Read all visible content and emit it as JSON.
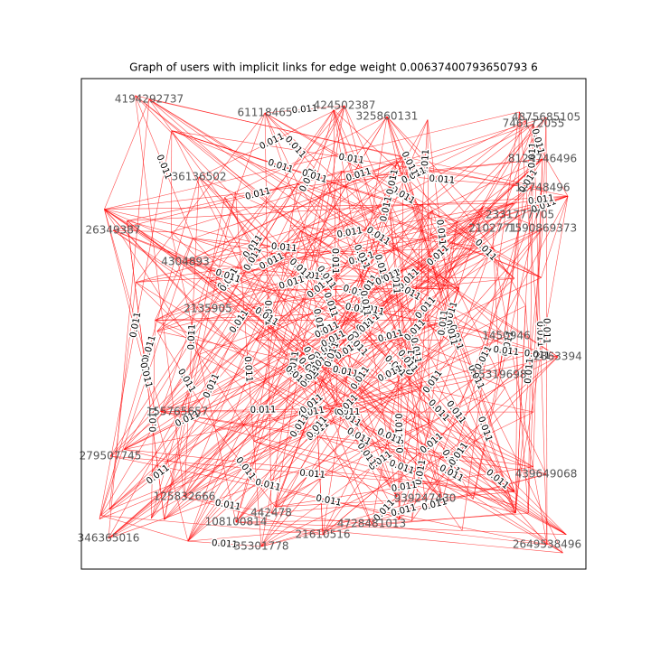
{
  "title": "Graph of users with implicit links for edge weight 0.00637400793650793 6",
  "edge_label": "0.011",
  "nodes": [
    "424502387",
    "325860131",
    "4875685105",
    "746172055",
    "61118465",
    "4194292737",
    "2863394",
    "939247430",
    "4728481013",
    "35301778",
    "21610516",
    "439649068",
    "1590869373",
    "2331777705",
    "125832666",
    "108100814",
    "442478",
    "155765657",
    "4304893",
    "2135905",
    "15319698",
    "1450946",
    "26349387",
    "2649538496",
    "8124746496",
    "2102771",
    "36136502",
    "12748496",
    "346365016",
    "279507745"
  ]
}
